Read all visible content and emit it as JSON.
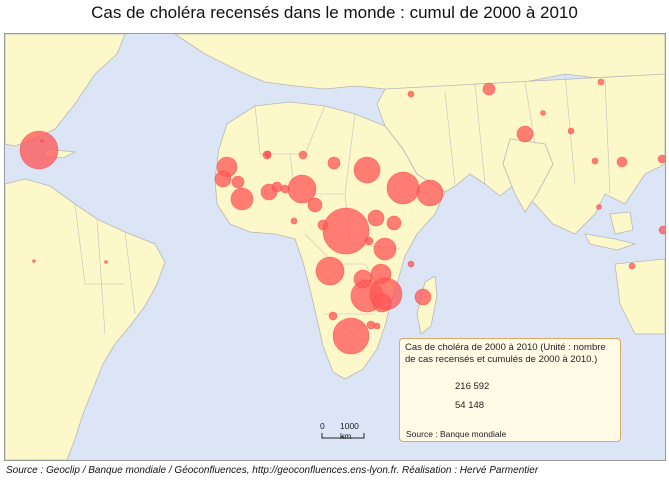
{
  "title": "Cas de choléra recensés dans le monde : cumul de 2000 à 2010",
  "legend": {
    "title": "Cas de choléra de 2000 à 2010 (Unité : nombre de cas recensés et cumulés de 2000 à 2010.)",
    "value_large": "216 592",
    "value_small": "54 148",
    "source": "Source : Banque mondiale"
  },
  "scale": {
    "zero": "0",
    "distance": "1000 km"
  },
  "source": "Source : Geoclip / Banque mondiale / Géoconfluences, http://geoconfluences.ens-lyon.fr. Réalisation : Hervé Parmentier",
  "colors": {
    "sea": "#dbe5f5",
    "land": "#fdf8c9",
    "border": "#b8b8b8",
    "circle": "#ff5a5a",
    "legend_fill": "#ff0000"
  }
}
